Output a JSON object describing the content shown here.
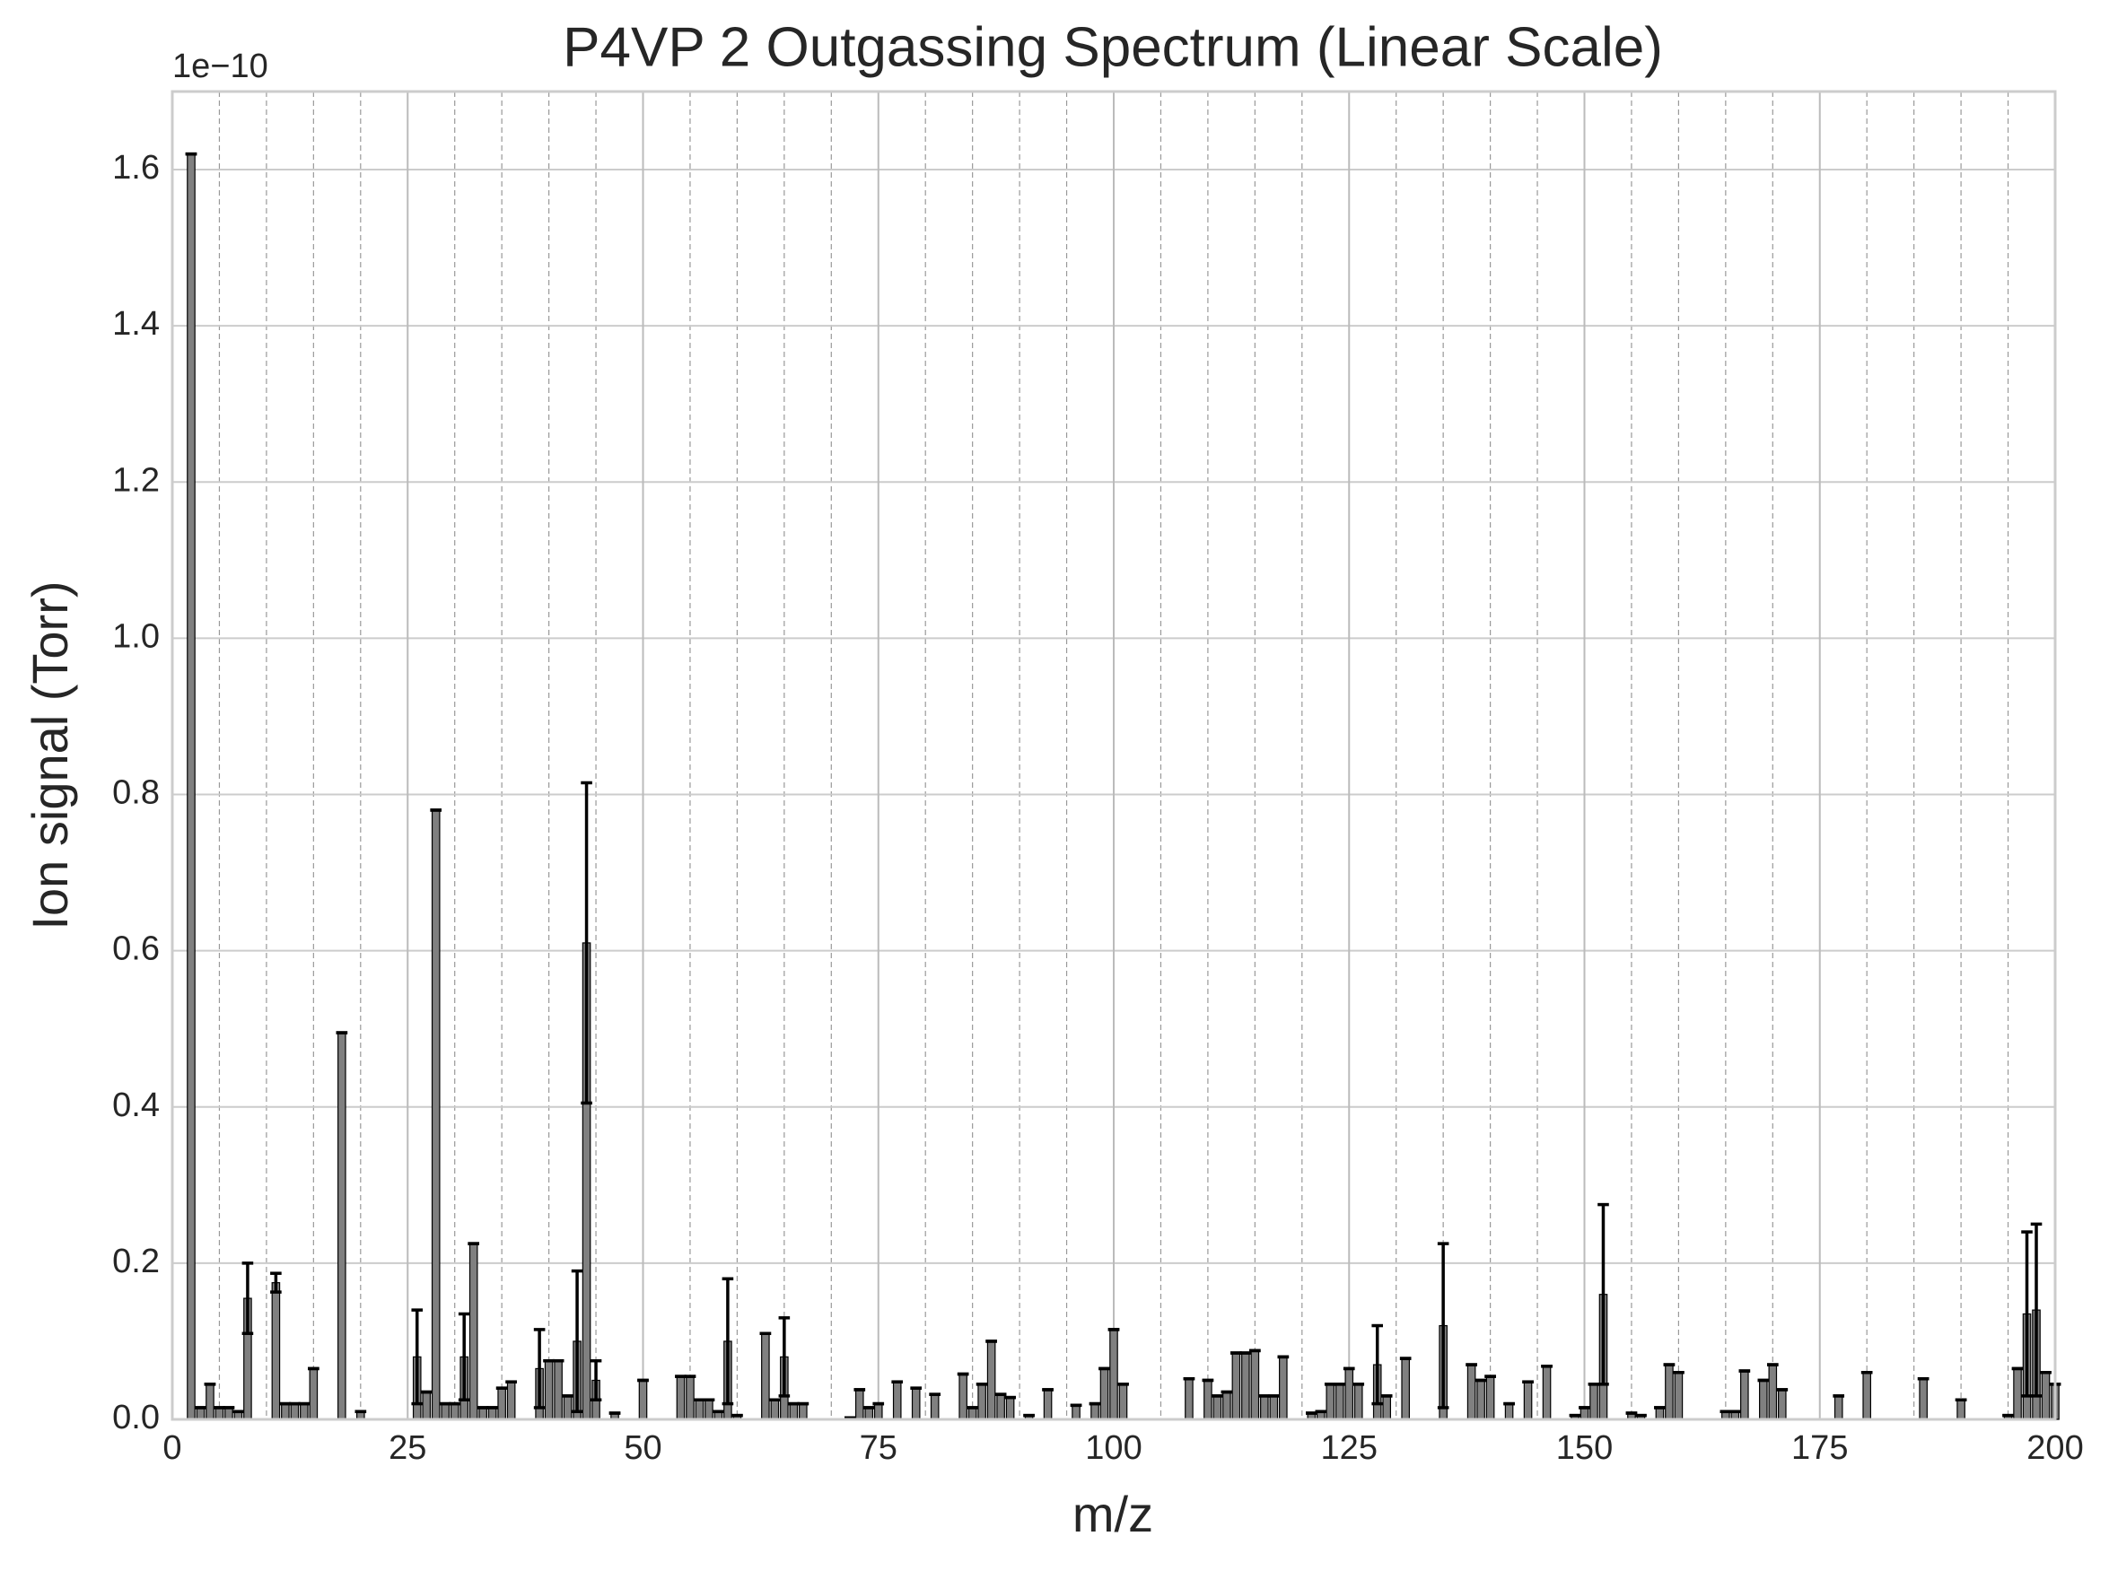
{
  "chart_data": {
    "type": "bar",
    "title": "P4VP 2 Outgassing Spectrum (Linear Scale)",
    "x_label": "m/z",
    "y_label": "Ion signal (Torr)",
    "offset_text": "1e−10",
    "color": "#808080",
    "edgecolor": "#000000",
    "error_color": "#000000",
    "grid": true,
    "xlim": [
      0,
      200
    ],
    "xticks": [
      0,
      25,
      50,
      75,
      100,
      125,
      150,
      175,
      200
    ],
    "xminorticks": [
      5,
      10,
      15,
      20,
      30,
      35,
      40,
      45,
      55,
      60,
      65,
      70,
      80,
      85,
      90,
      95,
      105,
      110,
      115,
      120,
      130,
      135,
      140,
      145,
      155,
      160,
      165,
      170,
      180,
      185,
      190,
      195
    ],
    "ylim": [
      0,
      1.7
    ],
    "yticks": [
      {
        "value": 0,
        "label": "0.0"
      },
      0.2,
      0.4,
      0.6,
      0.8,
      {
        "value": 1,
        "label": "1.0"
      },
      1.2,
      1.4,
      1.6
    ],
    "x": [
      2,
      3,
      4,
      5,
      6,
      7,
      8,
      11,
      12,
      13,
      14,
      15,
      18,
      20,
      26,
      27,
      28,
      29,
      30,
      31,
      32,
      33,
      34,
      35,
      36,
      39,
      40,
      41,
      42,
      43,
      44,
      45,
      47,
      50,
      54,
      55,
      56,
      57,
      58,
      59,
      60,
      63,
      64,
      65,
      66,
      67,
      72,
      73,
      74,
      75,
      77,
      79,
      81,
      84,
      85,
      86,
      87,
      88,
      89,
      91,
      93,
      96,
      98,
      99,
      100,
      101,
      108,
      110,
      111,
      112,
      113,
      114,
      115,
      116,
      117,
      118,
      121,
      122,
      123,
      124,
      125,
      126,
      128,
      129,
      131,
      135,
      138,
      139,
      140,
      142,
      144,
      146,
      149,
      150,
      151,
      152,
      155,
      156,
      158,
      159,
      160,
      165,
      166,
      167,
      169,
      170,
      171,
      177,
      180,
      186,
      190,
      195,
      196,
      197,
      198,
      199,
      200
    ],
    "values": [
      1.62,
      0.015,
      0.045,
      0.015,
      0.015,
      0.01,
      0.155,
      0.175,
      0.02,
      0.02,
      0.02,
      0.065,
      0.495,
      0.01,
      0.08,
      0.035,
      0.78,
      0.02,
      0.02,
      0.08,
      0.225,
      0.015,
      0.015,
      0.04,
      0.048,
      0.065,
      0.075,
      0.075,
      0.03,
      0.1,
      0.61,
      0.05,
      0.008,
      0.05,
      0.055,
      0.055,
      0.025,
      0.025,
      0.01,
      0.1,
      0.005,
      0.11,
      0.025,
      0.08,
      0.02,
      0.02,
      0.002,
      0.038,
      0.015,
      0.02,
      0.048,
      0.04,
      0.032,
      0.058,
      0.015,
      0.045,
      0.1,
      0.032,
      0.028,
      0.005,
      0.038,
      0.018,
      0.02,
      0.065,
      0.115,
      0.045,
      0.052,
      0.05,
      0.03,
      0.035,
      0.085,
      0.085,
      0.088,
      0.03,
      0.03,
      0.08,
      0.008,
      0.01,
      0.045,
      0.045,
      0.065,
      0.045,
      0.07,
      0.03,
      0.078,
      0.12,
      0.07,
      0.05,
      0.055,
      0.02,
      0.048,
      0.068,
      0.005,
      0.015,
      0.045,
      0.16,
      0.008,
      0.005,
      0.015,
      0.07,
      0.06,
      0.01,
      0.01,
      0.062,
      0.05,
      0.07,
      0.038,
      0.03,
      0.06,
      0.052,
      0.025,
      0.005,
      0.065,
      0.135,
      0.14,
      0.06,
      0.045
    ],
    "errors": [
      0,
      0,
      0,
      0,
      0,
      0,
      0.045,
      0.012,
      0,
      0,
      0,
      0,
      0,
      0,
      0.06,
      0,
      0,
      0,
      0,
      0.055,
      0,
      0,
      0,
      0,
      0,
      0.05,
      0,
      0,
      0,
      0.09,
      0.205,
      0.025,
      0,
      0,
      0,
      0,
      0,
      0,
      0,
      0.08,
      0,
      0,
      0,
      0.05,
      0,
      0,
      0,
      0,
      0,
      0,
      0,
      0,
      0,
      0,
      0,
      0,
      0,
      0,
      0,
      0,
      0,
      0,
      0,
      0,
      0,
      0,
      0,
      0,
      0,
      0,
      0,
      0,
      0,
      0,
      0,
      0,
      0,
      0,
      0,
      0,
      0,
      0,
      0.05,
      0,
      0,
      0.105,
      0,
      0,
      0,
      0,
      0,
      0,
      0,
      0,
      0,
      0.115,
      0,
      0,
      0,
      0,
      0,
      0,
      0,
      0,
      0,
      0,
      0,
      0,
      0,
      0,
      0,
      0,
      0,
      0.105,
      0.11,
      0,
      0
    ]
  }
}
